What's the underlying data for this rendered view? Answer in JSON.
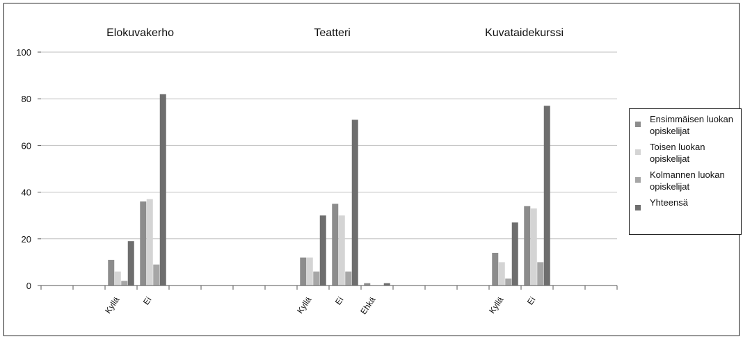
{
  "chart_data": {
    "type": "bar",
    "title": "",
    "xlabel": "",
    "ylabel": "",
    "ylim": [
      0,
      100
    ],
    "yticks": [
      0,
      20,
      40,
      60,
      80,
      100
    ],
    "grid": true,
    "legend_position": "right",
    "groups": [
      {
        "title": "Elokuvakerho",
        "categories": [
          {
            "label": "Kyllä",
            "values": [
              11,
              6,
              2,
              19
            ]
          },
          {
            "label": "Ei",
            "values": [
              36,
              37,
              9,
              82
            ]
          }
        ]
      },
      {
        "title": "Teatteri",
        "categories": [
          {
            "label": "Kyllä",
            "values": [
              12,
              12,
              6,
              30
            ]
          },
          {
            "label": "Ei",
            "values": [
              35,
              30,
              6,
              71
            ]
          },
          {
            "label": "Ehkä",
            "values": [
              1,
              0,
              0,
              1
            ]
          }
        ]
      },
      {
        "title": "Kuvataidekurssi",
        "categories": [
          {
            "label": "Kyllä",
            "values": [
              14,
              10,
              3,
              27
            ]
          },
          {
            "label": "Ei",
            "values": [
              34,
              33,
              10,
              77
            ]
          }
        ]
      }
    ],
    "series": [
      {
        "name": "Ensimmäisen luokan opiskelijat",
        "color": "#8c8c8c"
      },
      {
        "name": "Toisen luokan opiskelijat",
        "color": "#d4d4d4"
      },
      {
        "name": "Kolmannen luokan opiskelijat",
        "color": "#a6a6a6"
      },
      {
        "name": "Yhteensä",
        "color": "#6e6e6e"
      }
    ]
  }
}
